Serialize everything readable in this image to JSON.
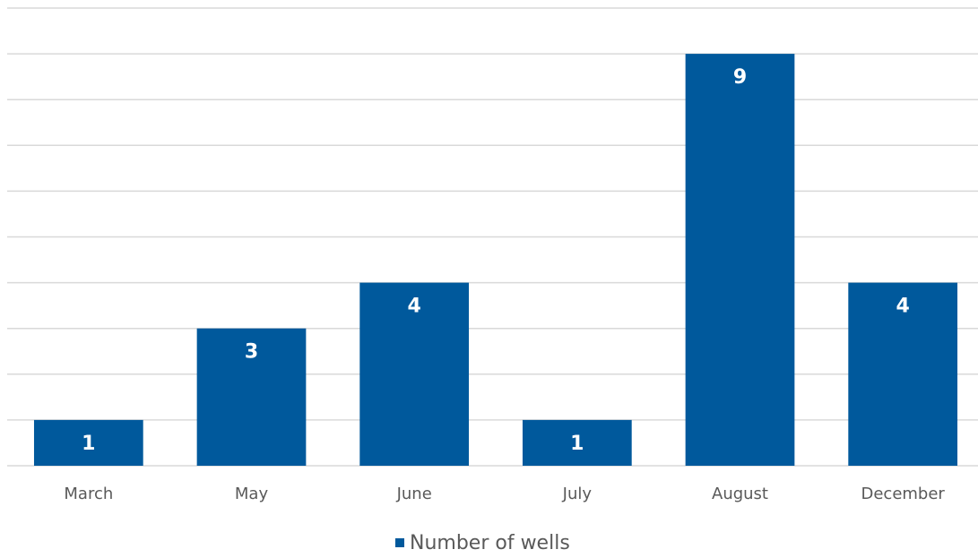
{
  "chart_data": {
    "type": "bar",
    "categories": [
      "March",
      "May",
      "June",
      "July",
      "August",
      "December"
    ],
    "series": [
      {
        "name": "Number of wells",
        "color": "#00599c",
        "values": [
          1,
          3,
          4,
          1,
          9,
          4
        ]
      }
    ],
    "ylim": [
      0,
      10
    ],
    "yticks": [
      0,
      1,
      2,
      3,
      4,
      5,
      6,
      7,
      8,
      9,
      10
    ],
    "grid": true,
    "legend": "bottom"
  }
}
